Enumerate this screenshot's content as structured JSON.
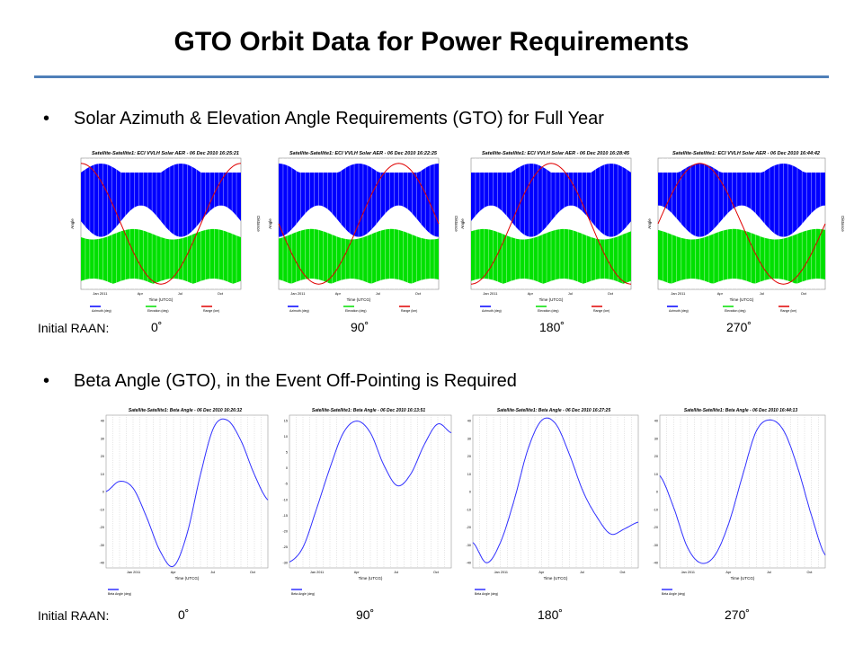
{
  "slide": {
    "title": "GTO Orbit Data for Power Requirements",
    "bullet_dot": "•",
    "bullet1": "Solar Azimuth & Elevation Angle Requirements (GTO) for Full Year",
    "bullet2": "Beta Angle (GTO), in the Event Off-Pointing is Required",
    "raan_label": "Initial  RAAN:",
    "raan_values": [
      "0˚",
      "90˚",
      "180˚",
      "270˚"
    ],
    "colors": {
      "rule": "#4f7fb8",
      "azimuth": "#0000ff",
      "elevation": "#00e000",
      "range": "#e00000",
      "beta": "#3030ff"
    }
  },
  "aer_charts": [
    {
      "title": "Satellite-Satellite1:  ECI VVLH Solar AER - 06 Dec 2010 16:25:21",
      "xlabel": "Time (UTCG)",
      "ylabel": "Angle",
      "y2label": "Distance",
      "legend": [
        "Azimuth (deg)",
        "Elevation (deg)",
        "Range (km)"
      ],
      "xticks": [
        "Jan 2011",
        "Apr",
        "Jul",
        "Oct"
      ]
    },
    {
      "title": "Satellite-Satellite1:  ECI VVLH Solar AER - 06 Dec 2010 16:22:25",
      "xlabel": "Time (UTCG)",
      "ylabel": "Angle",
      "y2label": "Distance",
      "legend": [
        "Azimuth (deg)",
        "Elevation (deg)",
        "Range (km)"
      ],
      "xticks": [
        "Jan 2011",
        "Apr",
        "Jul",
        "Oct"
      ]
    },
    {
      "title": "Satellite-Satellite1:  ECI VVLH Solar AER - 06 Dec 2010 16:28:45",
      "xlabel": "Time (UTCG)",
      "ylabel": "Angle",
      "y2label": "Distance",
      "legend": [
        "Azimuth (deg)",
        "Elevation (deg)",
        "Range (km)"
      ],
      "xticks": [
        "Jan 2011",
        "Apr",
        "Jul",
        "Oct"
      ]
    },
    {
      "title": "Satellite-Satellite1:  ECI VVLH Solar AER - 06 Dec 2010 16:44:42",
      "xlabel": "Time (UTCG)",
      "ylabel": "Angle",
      "y2label": "Distance",
      "legend": [
        "Azimuth (deg)",
        "Elevation (deg)",
        "Range (km)"
      ],
      "xticks": [
        "Jan 2011",
        "Apr",
        "Jul",
        "Oct"
      ]
    }
  ],
  "beta_charts": [
    {
      "title": "Satellite-Satellite1:  Beta Angle - 06 Dec 2010 16:26:32",
      "xlabel": "Time (UTCG)",
      "ylabel": "",
      "legend": [
        "Beta Angle (deg)"
      ],
      "xticks": [
        "Jan 2011",
        "Apr",
        "Jul",
        "Oct"
      ],
      "yticks": [
        "40",
        "30",
        "20",
        "10",
        "0",
        "-10",
        "-20",
        "-30",
        "-40"
      ]
    },
    {
      "title": "Satellite-Satellite1:  Beta Angle - 06 Dec 2010 16:13:51",
      "xlabel": "Time (UTCG)",
      "ylabel": "",
      "legend": [
        "Beta Angle (deg)"
      ],
      "xticks": [
        "Jan 2011",
        "Apr",
        "Jul",
        "Oct"
      ],
      "yticks": [
        "15",
        "10",
        "5",
        "0",
        "-5",
        "-10",
        "-15",
        "-20",
        "-25",
        "-30"
      ]
    },
    {
      "title": "Satellite-Satellite1:  Beta Angle - 06 Dec 2010 16:27:25",
      "xlabel": "Time (UTCG)",
      "ylabel": "",
      "legend": [
        "Beta Angle (deg)"
      ],
      "xticks": [
        "Jan 2011",
        "Apr",
        "Jul",
        "Oct"
      ],
      "yticks": [
        "40",
        "30",
        "20",
        "10",
        "0",
        "-10",
        "-20",
        "-30",
        "-40"
      ]
    },
    {
      "title": "Satellite-Satellite1:  Beta Angle - 06 Dec 2010 16:44:13",
      "xlabel": "Time (UTCG)",
      "ylabel": "",
      "legend": [
        "Beta Angle (deg)"
      ],
      "xticks": [
        "Jan 2011",
        "Apr",
        "Jul",
        "Oct"
      ],
      "yticks": [
        "40",
        "30",
        "20",
        "10",
        "0",
        "-10",
        "-20",
        "-30",
        "-40"
      ]
    }
  ],
  "chart_data": [
    {
      "type": "line",
      "title": "Satellite-Satellite1:  Beta Angle - 06 Dec 2010 16:26:32",
      "xlabel": "Time (UTCG)",
      "series": [
        {
          "name": "Beta Angle (deg)",
          "x": [
            "Dec 2010",
            "Jan 2011",
            "Feb",
            "Mar",
            "Apr",
            "May",
            "Jun",
            "Jul",
            "Aug",
            "Sep",
            "Oct",
            "Nov",
            "Dec"
          ],
          "values": [
            0,
            6,
            2,
            -15,
            -35,
            -44,
            -25,
            10,
            38,
            42,
            30,
            10,
            -5
          ]
        }
      ],
      "ylim": [
        -45,
        45
      ]
    },
    {
      "type": "line",
      "title": "Satellite-Satellite1:  Beta Angle - 06 Dec 2010 16:13:51",
      "xlabel": "Time (UTCG)",
      "series": [
        {
          "name": "Beta Angle (deg)",
          "x": [
            "Dec 2010",
            "Jan 2011",
            "Feb",
            "Mar",
            "Apr",
            "May",
            "Jun",
            "Jul",
            "Aug",
            "Sep",
            "Oct",
            "Nov",
            "Dec"
          ],
          "values": [
            -30,
            -25,
            -12,
            2,
            14,
            18,
            14,
            3,
            -4,
            0,
            10,
            17,
            14
          ]
        }
      ],
      "ylim": [
        -32,
        20
      ]
    },
    {
      "type": "line",
      "title": "Satellite-Satellite1:  Beta Angle - 06 Dec 2010 16:27:25",
      "xlabel": "Time (UTCG)",
      "series": [
        {
          "name": "Beta Angle (deg)",
          "x": [
            "Dec 2010",
            "Jan 2011",
            "Feb",
            "Mar",
            "Apr",
            "May",
            "Jun",
            "Jul",
            "Aug",
            "Sep",
            "Oct",
            "Nov",
            "Dec"
          ],
          "values": [
            -30,
            -42,
            -30,
            -5,
            25,
            42,
            40,
            22,
            0,
            -15,
            -25,
            -22,
            -18
          ]
        }
      ],
      "ylim": [
        -45,
        45
      ]
    },
    {
      "type": "line",
      "title": "Satellite-Satellite1:  Beta Angle - 06 Dec 2010 16:44:13",
      "xlabel": "Time (UTCG)",
      "series": [
        {
          "name": "Beta Angle (deg)",
          "x": [
            "Dec 2010",
            "Jan 2011",
            "Feb",
            "Mar",
            "Apr",
            "May",
            "Jun",
            "Jul",
            "Aug",
            "Sep",
            "Oct",
            "Nov",
            "Dec"
          ],
          "values": [
            10,
            -10,
            -35,
            -45,
            -40,
            -20,
            10,
            38,
            45,
            38,
            15,
            -15,
            -40
          ]
        }
      ],
      "ylim": [
        -48,
        48
      ]
    }
  ]
}
